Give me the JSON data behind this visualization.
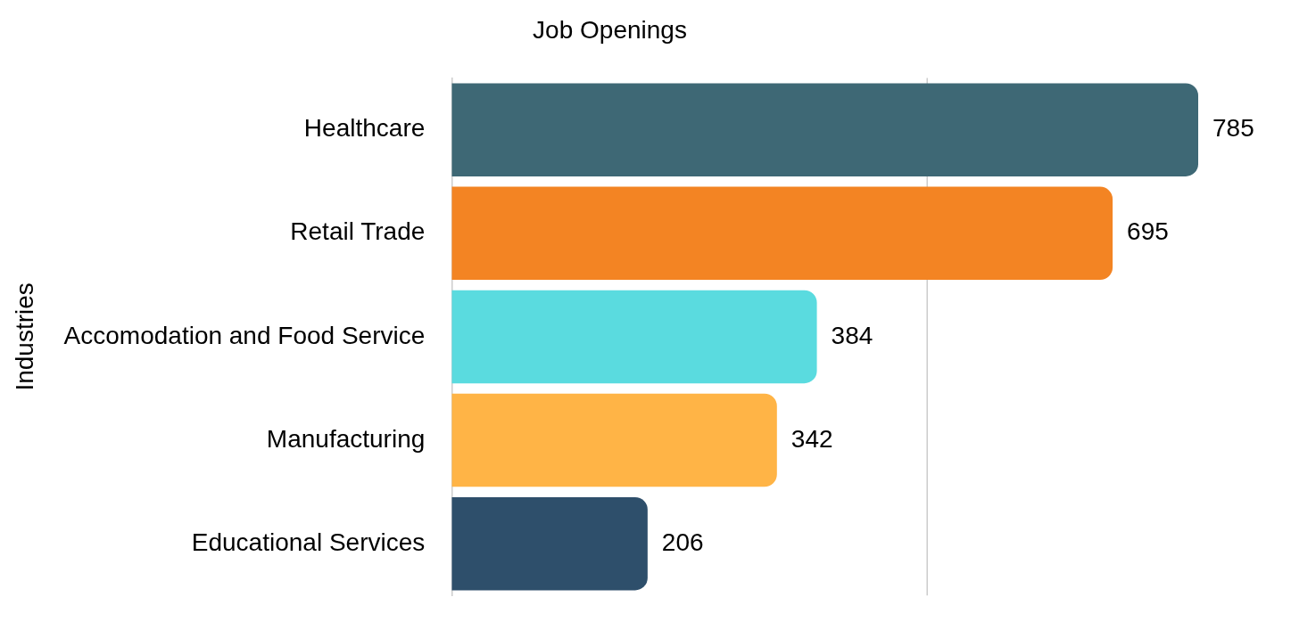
{
  "chart_data": {
    "type": "bar",
    "orientation": "horizontal",
    "title": "Job Openings",
    "ylabel": "Industries",
    "categories": [
      "Healthcare",
      "Retail Trade",
      "Accomodation and Food Service",
      "Manufacturing",
      "Educational Services"
    ],
    "values": [
      785,
      695,
      384,
      342,
      206
    ],
    "colors": [
      "#3e6875",
      "#f38423",
      "#5adbdf",
      "#ffb446",
      "#2e4f6b"
    ],
    "ref_lines": [
      {
        "axis": "x",
        "value": 500,
        "color": "#cccccc"
      }
    ],
    "tick_labels": "y",
    "data_labels": true,
    "legend": false
  }
}
